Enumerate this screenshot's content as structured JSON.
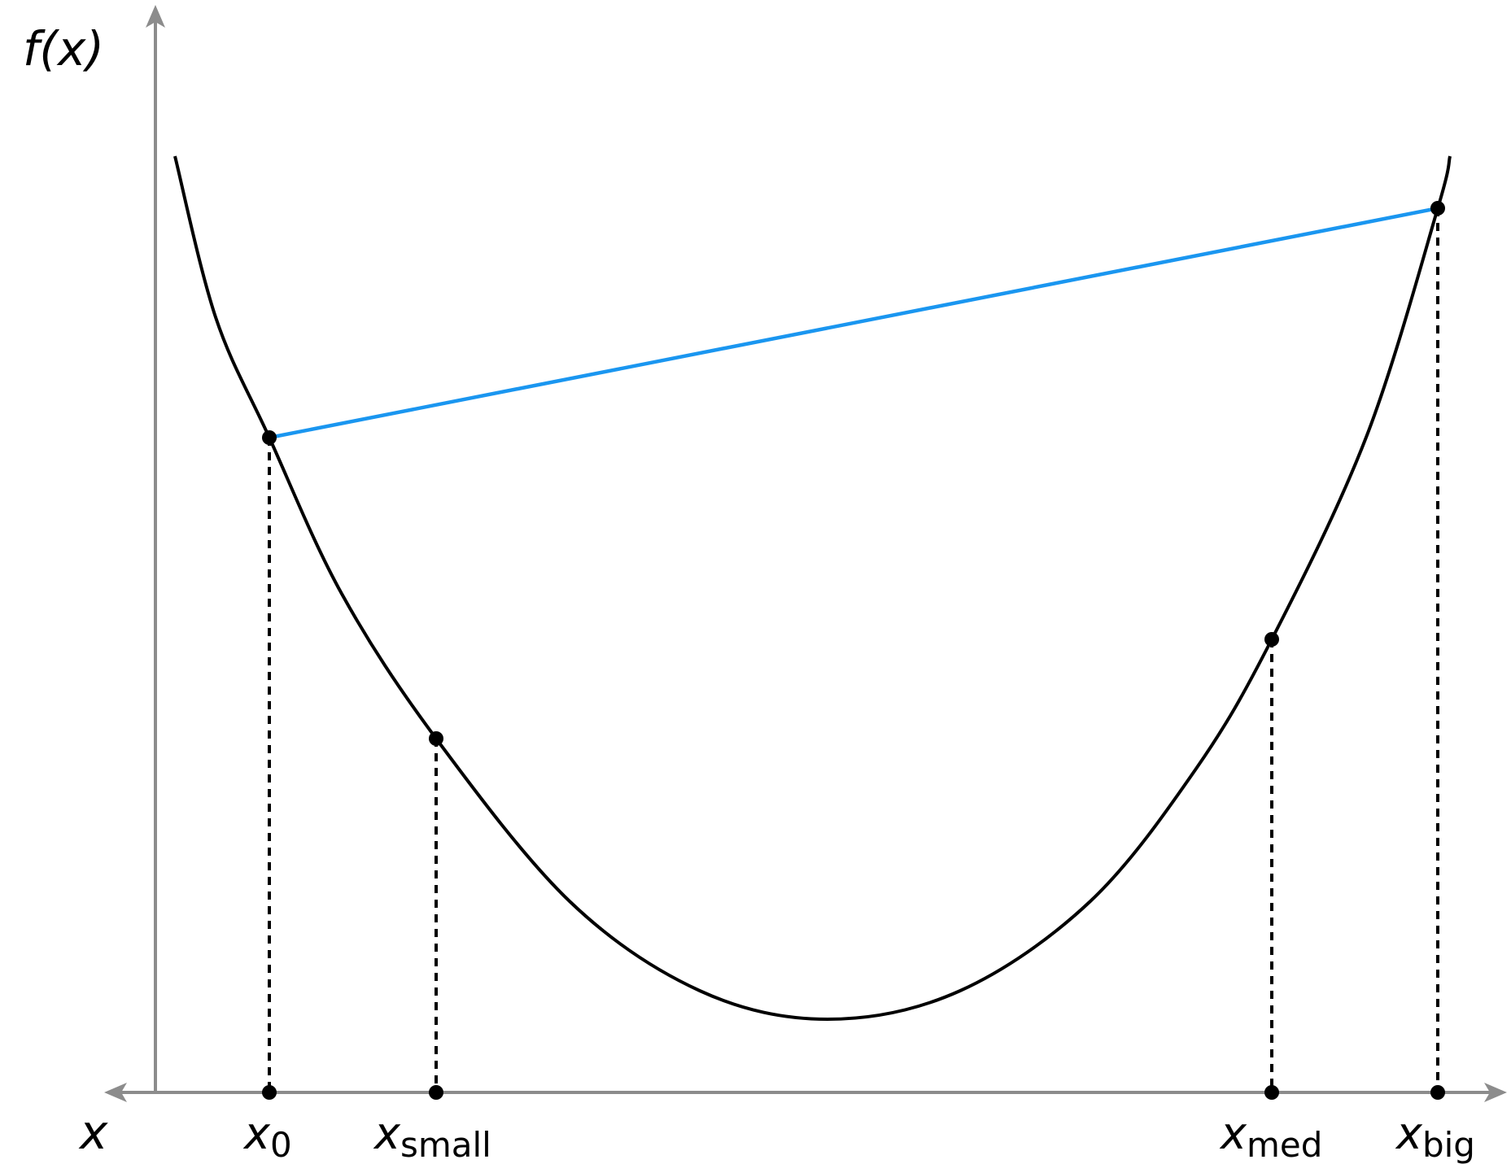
{
  "axes": {
    "x_label": "x",
    "y_label": "f(x)",
    "axis_color": "#8c8c8c"
  },
  "curve": {
    "color": "#000000"
  },
  "secant": {
    "from": "x_0",
    "to": "x_big",
    "color": "#1a96f0"
  },
  "points": [
    {
      "id": "x0",
      "base": "x",
      "sub": "0"
    },
    {
      "id": "xsmall",
      "base": "x",
      "sub": "small"
    },
    {
      "id": "xmed",
      "base": "x",
      "sub": "med"
    },
    {
      "id": "xbig",
      "base": "x",
      "sub": "big"
    }
  ]
}
